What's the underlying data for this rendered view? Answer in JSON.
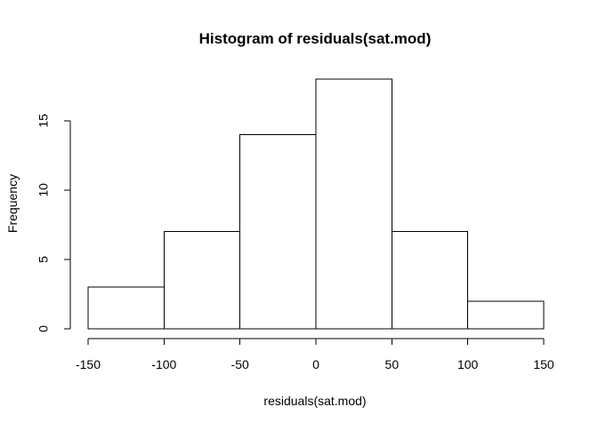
{
  "chart_data": {
    "type": "bar",
    "title": "Histogram of residuals(sat.mod)",
    "xlabel": "residuals(sat.mod)",
    "ylabel": "Frequency",
    "bins": [
      {
        "start": -150,
        "end": -100,
        "count": 3
      },
      {
        "start": -100,
        "end": -50,
        "count": 7
      },
      {
        "start": -50,
        "end": 0,
        "count": 14
      },
      {
        "start": 0,
        "end": 50,
        "count": 18
      },
      {
        "start": 50,
        "end": 100,
        "count": 7
      },
      {
        "start": 100,
        "end": 150,
        "count": 2
      }
    ],
    "xticks": [
      -150,
      -100,
      -50,
      0,
      50,
      100,
      150
    ],
    "yticks": [
      0,
      5,
      10,
      15
    ],
    "xlim": [
      -150,
      150
    ],
    "ylim": [
      0,
      18
    ],
    "grid": false,
    "colors": {
      "bar_fill": "#ffffff",
      "bar_stroke": "#000000",
      "axis": "#000000",
      "text": "#000000"
    }
  }
}
